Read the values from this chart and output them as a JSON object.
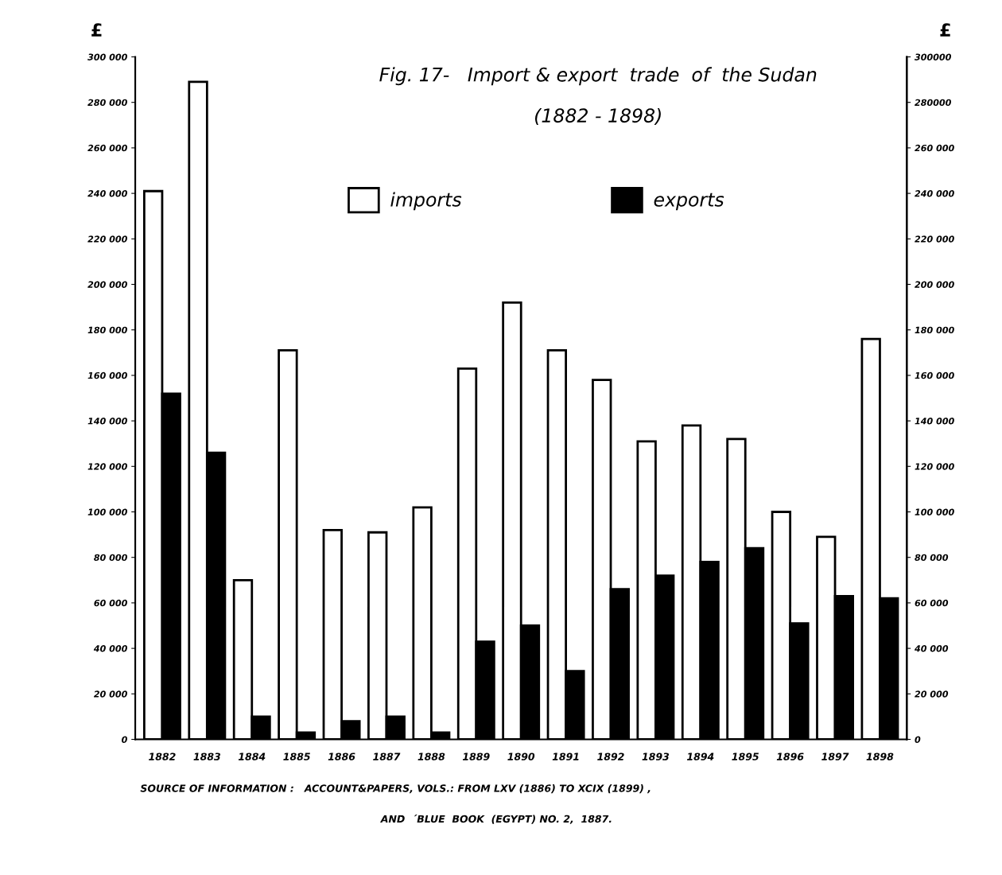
{
  "chart_data": {
    "type": "bar",
    "title": "Fig. 17-   Import & export  trade  of  the Sudan",
    "subtitle": "(1882 - 1898)",
    "ylabel": "£",
    "y2label": "£",
    "categories": [
      "1882",
      "1883",
      "1884",
      "1885",
      "1886",
      "1887",
      "1888",
      "1889",
      "1890",
      "1891",
      "1892",
      "1893",
      "1894",
      "1895",
      "1896",
      "1897",
      "1898"
    ],
    "series": [
      {
        "name": "imports",
        "color": "#ffffff",
        "values": [
          241000,
          289000,
          70000,
          171000,
          92000,
          91000,
          102000,
          163000,
          192000,
          171000,
          158000,
          131000,
          138000,
          132000,
          100000,
          89000,
          176000
        ]
      },
      {
        "name": "exports",
        "color": "#000000",
        "values": [
          152000,
          126000,
          10000,
          3000,
          8000,
          10000,
          3000,
          43000,
          50000,
          30000,
          66000,
          72000,
          78000,
          84000,
          51000,
          63000,
          62000
        ]
      }
    ],
    "ylim": [
      0,
      300000
    ],
    "yticks": [
      0,
      {
        "value": 20000,
        "label": "20 000"
      },
      {
        "value": 40000,
        "label": "40 000"
      },
      {
        "value": 60000,
        "label": "60 000"
      },
      {
        "value": 80000,
        "label": "80 000"
      },
      {
        "value": 100000,
        "label": "100 000"
      },
      {
        "value": 120000,
        "label": "120 000"
      },
      {
        "value": 140000,
        "label": "140 000"
      },
      {
        "value": 160000,
        "label": "160 000"
      },
      {
        "value": 180000,
        "label": "180 000"
      },
      {
        "value": 200000,
        "label": "200 000"
      },
      {
        "value": 220000,
        "label": "220 000"
      },
      {
        "value": 240000,
        "label": "240 000"
      },
      {
        "value": 260000,
        "label": "260 000"
      },
      {
        "value": 280000,
        "label": "280 000"
      },
      {
        "value": 300000,
        "label": "300 000"
      }
    ],
    "y2lim": [
      0,
      300000
    ],
    "y2ticks": [
      0,
      {
        "value": 20000,
        "label": "20 000"
      },
      {
        "value": 40000,
        "label": "40 000"
      },
      {
        "value": 60000,
        "label": "60 000"
      },
      {
        "value": 80000,
        "label": "80 000"
      },
      {
        "value": 100000,
        "label": "100 000"
      },
      {
        "value": 120000,
        "label": "120 000"
      },
      {
        "value": 140000,
        "label": "140 000"
      },
      {
        "value": 160000,
        "label": "160 000"
      },
      {
        "value": 180000,
        "label": "180 000"
      },
      {
        "value": 200000,
        "label": "200 000"
      },
      {
        "value": 220000,
        "label": "220 000"
      },
      {
        "value": 240000,
        "label": "240 000"
      },
      {
        "value": 260000,
        "label": "260 000"
      },
      {
        "value": 280000,
        "label": "280000"
      },
      {
        "value": 300000,
        "label": "300000"
      }
    ],
    "grid": false,
    "legend": "top",
    "annotations": [
      "SOURCE OF INFORMATION :   ACCOUNT&PAPERS, VOLS.: FROM LXV (1886) TO XCIX (1899) ,",
      "AND  ´BLUE  BOOK  (EGYPT) NO. 2,  1887."
    ]
  }
}
